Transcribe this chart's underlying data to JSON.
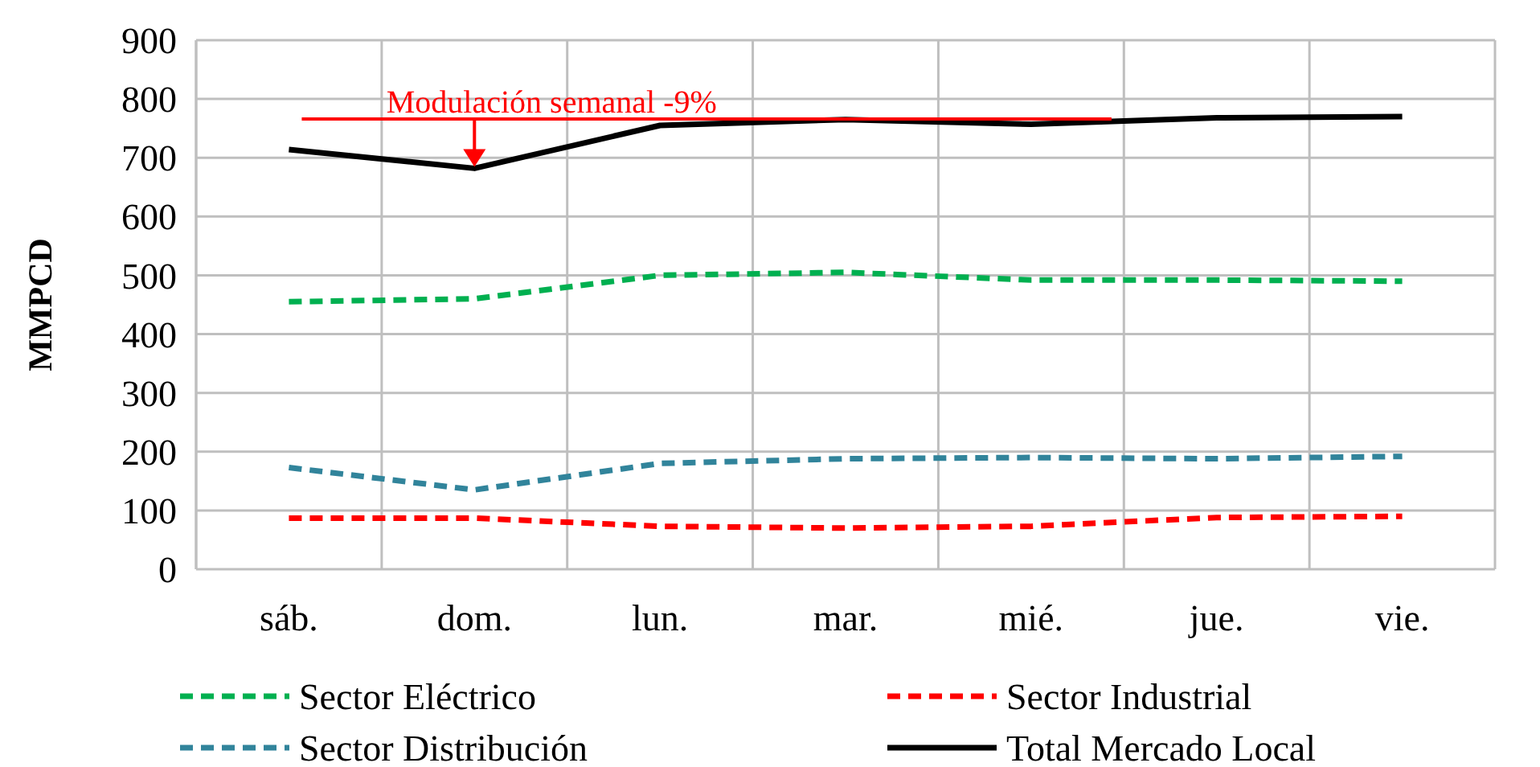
{
  "chart_data": {
    "type": "line",
    "ylabel": "MMPCD",
    "categories": [
      "sáb.",
      "dom.",
      "lun.",
      "mar.",
      "mié.",
      "jue.",
      "vie."
    ],
    "series": [
      {
        "name": "Sector Eléctrico",
        "color": "#00b050",
        "line_style": "dashed",
        "values": [
          455,
          460,
          500,
          505,
          492,
          492,
          490
        ]
      },
      {
        "name": "Sector Industrial",
        "color": "#ff0000",
        "line_style": "dashed",
        "values": [
          87,
          87,
          73,
          70,
          73,
          88,
          90
        ]
      },
      {
        "name": "Sector Distribución",
        "color": "#31849b",
        "line_style": "dashed",
        "values": [
          173,
          135,
          180,
          188,
          190,
          188,
          192
        ]
      },
      {
        "name": "Total Mercado Local",
        "color": "#000000",
        "line_style": "solid",
        "values": [
          714,
          682,
          755,
          765,
          757,
          768,
          770
        ]
      }
    ],
    "ylim": [
      0,
      900
    ],
    "yticks": [
      0,
      100,
      200,
      300,
      400,
      500,
      600,
      700,
      800,
      900
    ],
    "grid": true,
    "legend": "bottom",
    "ref_lines": [
      {
        "axis": "y",
        "value": 766,
        "color": "#ff0000"
      }
    ],
    "annotations": [
      {
        "text": "Modulación semanal -9%",
        "x": "dom.",
        "y": 682
      }
    ]
  }
}
